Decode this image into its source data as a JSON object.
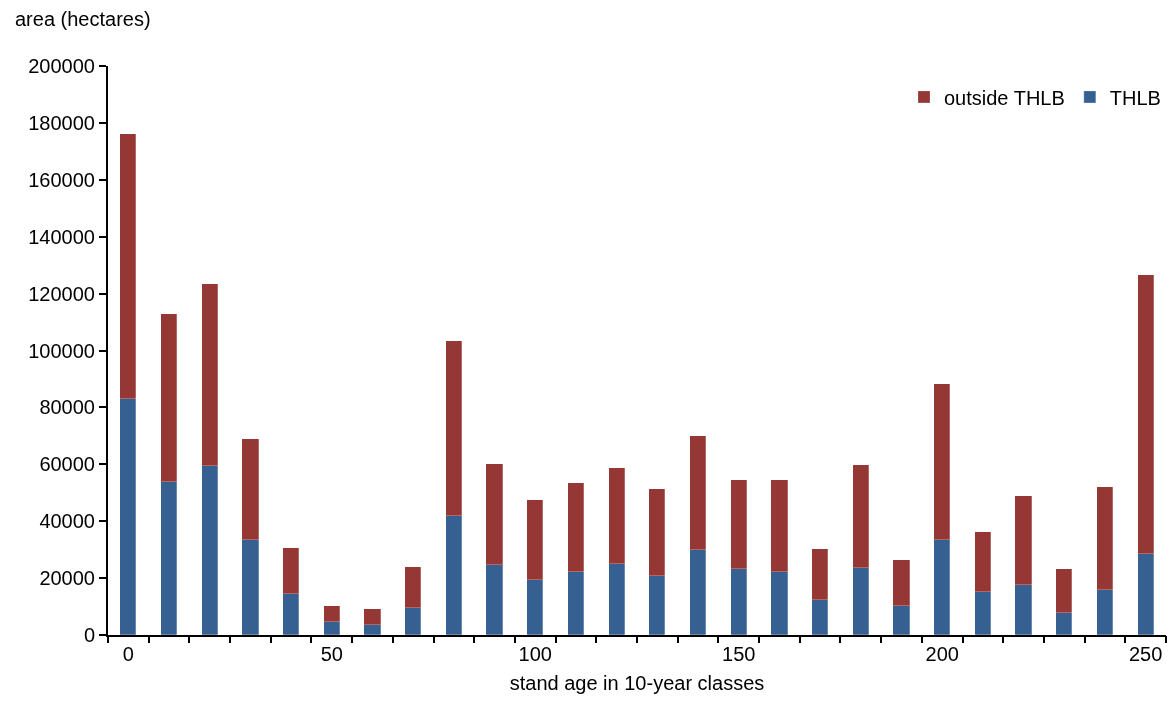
{
  "chart_data": {
    "type": "bar",
    "stacked": true,
    "ylabel": "area (hectares)",
    "xlabel": "stand age in 10-year classes",
    "x": [
      0,
      10,
      20,
      30,
      40,
      50,
      60,
      70,
      80,
      90,
      100,
      110,
      120,
      130,
      140,
      150,
      160,
      170,
      180,
      190,
      200,
      210,
      220,
      230,
      240,
      250
    ],
    "series": [
      {
        "name": "THLB",
        "color": "#366092",
        "values": [
          83000,
          53700,
          59300,
          33300,
          14400,
          4600,
          3500,
          9500,
          41800,
          24600,
          19300,
          22100,
          24900,
          20700,
          29800,
          23200,
          22100,
          12300,
          23500,
          10200,
          33300,
          15100,
          17500,
          7800,
          15800,
          28400
        ]
      },
      {
        "name": "outside THLB",
        "color": "#953735",
        "values": [
          93000,
          59300,
          64200,
          35500,
          16100,
          5600,
          5800,
          14400,
          61700,
          35500,
          28000,
          31300,
          33900,
          30600,
          40200,
          31300,
          32400,
          17900,
          36300,
          16100,
          54800,
          21000,
          31200,
          15400,
          36100,
          98100
        ]
      }
    ],
    "xlim": [
      -5,
      255
    ],
    "xticks": [
      0,
      50,
      100,
      150,
      200,
      250,
      {
        "value": -5,
        "label": null
      },
      {
        "value": 5,
        "label": null
      },
      {
        "value": 15,
        "label": null
      },
      {
        "value": 25,
        "label": null
      },
      {
        "value": 35,
        "label": null
      },
      {
        "value": 45,
        "label": null
      },
      {
        "value": 55,
        "label": null
      },
      {
        "value": 65,
        "label": null
      },
      {
        "value": 75,
        "label": null
      },
      {
        "value": 85,
        "label": null
      },
      {
        "value": 95,
        "label": null
      },
      {
        "value": 105,
        "label": null
      },
      {
        "value": 115,
        "label": null
      },
      {
        "value": 125,
        "label": null
      },
      {
        "value": 135,
        "label": null
      },
      {
        "value": 145,
        "label": null
      },
      {
        "value": 155,
        "label": null
      },
      {
        "value": 165,
        "label": null
      },
      {
        "value": 175,
        "label": null
      },
      {
        "value": 185,
        "label": null
      },
      {
        "value": 195,
        "label": null
      },
      {
        "value": 205,
        "label": null
      },
      {
        "value": 215,
        "label": null
      },
      {
        "value": 225,
        "label": null
      },
      {
        "value": 235,
        "label": null
      },
      {
        "value": 245,
        "label": null
      },
      {
        "value": 255,
        "label": null
      }
    ],
    "ylim": [
      0,
      200000
    ],
    "yticks": [
      0,
      20000,
      40000,
      60000,
      80000,
      100000,
      120000,
      140000,
      160000,
      180000,
      200000
    ],
    "grid": false,
    "legend": "top right"
  }
}
